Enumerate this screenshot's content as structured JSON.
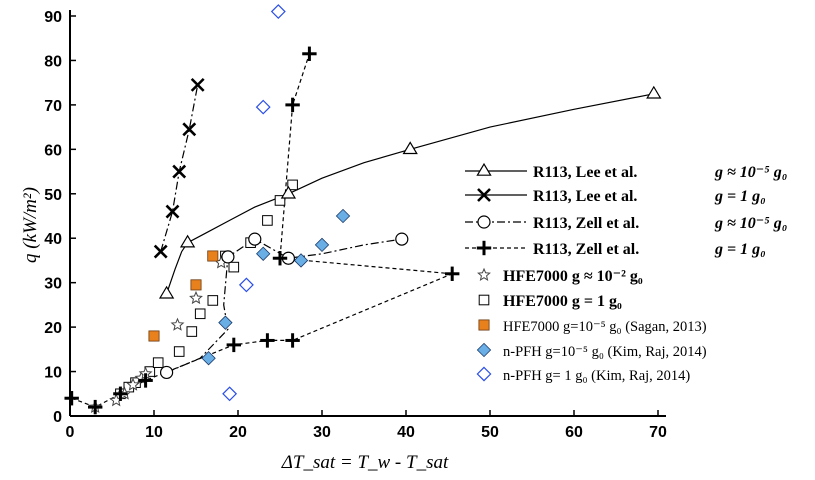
{
  "chart_data": {
    "type": "scatter",
    "title": "",
    "xlabel": "ΔT_sat = T_w - T_sat",
    "ylabel": "q (kW/m²)",
    "xlim": [
      0,
      70
    ],
    "ylim": [
      0,
      90
    ],
    "xticks": [
      0,
      10,
      20,
      30,
      40,
      50,
      60,
      70
    ],
    "yticks": [
      0,
      10,
      20,
      30,
      40,
      50,
      60,
      70,
      80,
      90
    ],
    "grid": false,
    "legend_position": "right",
    "series": [
      {
        "name": "R113, Lee et al.  g ≈ 10⁻⁵ g₀",
        "marker": "triangle",
        "line": "solid",
        "color": "#000000",
        "x": [
          11.5,
          14.0,
          26.0,
          40.5,
          69.5
        ],
        "y": [
          27.5,
          39.0,
          50.0,
          60.0,
          72.5
        ],
        "curve_x": [
          11.5,
          12.5,
          13.3,
          14.0,
          16,
          19,
          22,
          26.0,
          30,
          35,
          40.5,
          50,
          60,
          69.5
        ],
        "curve_y": [
          27.5,
          33.0,
          37.0,
          39.0,
          41.0,
          44.0,
          47.0,
          50.0,
          53.5,
          57.0,
          60.0,
          65.0,
          69.0,
          72.5
        ]
      },
      {
        "name": "R113, Lee et al.  g = 1 g₀",
        "marker": "x",
        "line": "dashdot",
        "color": "#000000",
        "x": [
          10.8,
          12.2,
          13.0,
          14.2,
          15.2
        ],
        "y": [
          37.0,
          46.0,
          55.0,
          64.5,
          74.5
        ]
      },
      {
        "name": "R113, Zell et al.  g ≈ 10⁻⁵ g₀",
        "marker": "circle",
        "line": "dashdot",
        "color": "#000000",
        "x": [
          11.5,
          18.8,
          22.0,
          26.0,
          39.5
        ],
        "y": [
          9.8,
          35.8,
          39.8,
          35.5,
          39.8
        ]
      },
      {
        "name": "R113, Zell et al.  g = 1 g₀",
        "marker": "plus",
        "line": "dashed",
        "color": "#000000",
        "x": [
          0.2,
          3.0,
          6.0,
          9.0,
          19.5,
          23.5,
          26.5,
          45.5,
          25.0,
          26.5,
          28.5
        ],
        "y": [
          4.0,
          2.0,
          5.0,
          8.0,
          16.0,
          17.0,
          17.0,
          32.0,
          35.5,
          70.0,
          81.5
        ]
      },
      {
        "name": "HFE7000 g ≈ 10⁻² g₀",
        "marker": "star",
        "line": "none",
        "color": "#444444",
        "x": [
          3.0,
          5.5,
          6.5,
          7.5,
          8.5,
          9.0,
          12.8,
          15.0,
          18.0
        ],
        "y": [
          2.0,
          3.5,
          5.0,
          7.0,
          8.5,
          9.5,
          20.5,
          26.5,
          34.5
        ]
      },
      {
        "name": "HFE7000 g = 1 g₀",
        "marker": "square",
        "line": "none",
        "color": "#000000",
        "x": [
          6.0,
          7.0,
          7.8,
          9.5,
          10.5,
          13.0,
          14.5,
          15.5,
          17.0,
          19.5,
          18.5,
          21.5,
          23.5,
          25.0,
          26.5
        ],
        "y": [
          5.0,
          6.5,
          7.5,
          10.0,
          12.0,
          14.5,
          19.0,
          23.0,
          26.0,
          33.5,
          36.0,
          39.0,
          44.0,
          48.5,
          52.0
        ]
      },
      {
        "name": "HFE7000 g=10⁻⁵ g₀ (Sagan, 2013)",
        "marker": "square-filled",
        "line": "none",
        "color": "#e8801c",
        "x": [
          10.0,
          15.0,
          17.0
        ],
        "y": [
          18.0,
          29.5,
          36.0
        ]
      },
      {
        "name": "n-PFH g=10⁻⁵ g₀ (Kim, Raj, 2014)",
        "marker": "diamond-filled",
        "line": "none",
        "color": "#6aaee6",
        "x": [
          16.5,
          18.5,
          23.0,
          27.5,
          30.0,
          32.5
        ],
        "y": [
          13.0,
          21.0,
          36.5,
          35.0,
          38.5,
          45.0
        ]
      },
      {
        "name": "n-PFH g= 1 g₀ (Kim, Raj, 2014)",
        "marker": "diamond-open",
        "line": "none",
        "color": "#2a4ee8",
        "x": [
          19.0,
          21.0,
          23.0,
          24.8
        ],
        "y": [
          5.0,
          29.5,
          69.5,
          91.0
        ]
      }
    ]
  },
  "legend": [
    {
      "label": "R113, Lee et al.",
      "cond": "g ≈ 10⁻⁵ g₀"
    },
    {
      "label": "R113, Lee et al.",
      "cond": "g = 1  g₀"
    },
    {
      "label": "R113, Zell et al.",
      "cond": "g ≈ 10⁻⁵ g₀"
    },
    {
      "label": "R113, Zell et al.",
      "cond": "g = 1  g₀"
    },
    {
      "label": "HFE7000 g ≈ 10⁻² g₀",
      "cond": ""
    },
    {
      "label": "HFE7000 g = 1 g₀",
      "cond": ""
    },
    {
      "label": "HFE7000 g=10⁻⁵ g₀ (Sagan, 2013)",
      "cond": ""
    },
    {
      "label": "n-PFH g=10⁻⁵ g₀ (Kim, Raj, 2014)",
      "cond": ""
    },
    {
      "label": "n-PFH g= 1 g₀ (Kim, Raj, 2014)",
      "cond": ""
    }
  ]
}
